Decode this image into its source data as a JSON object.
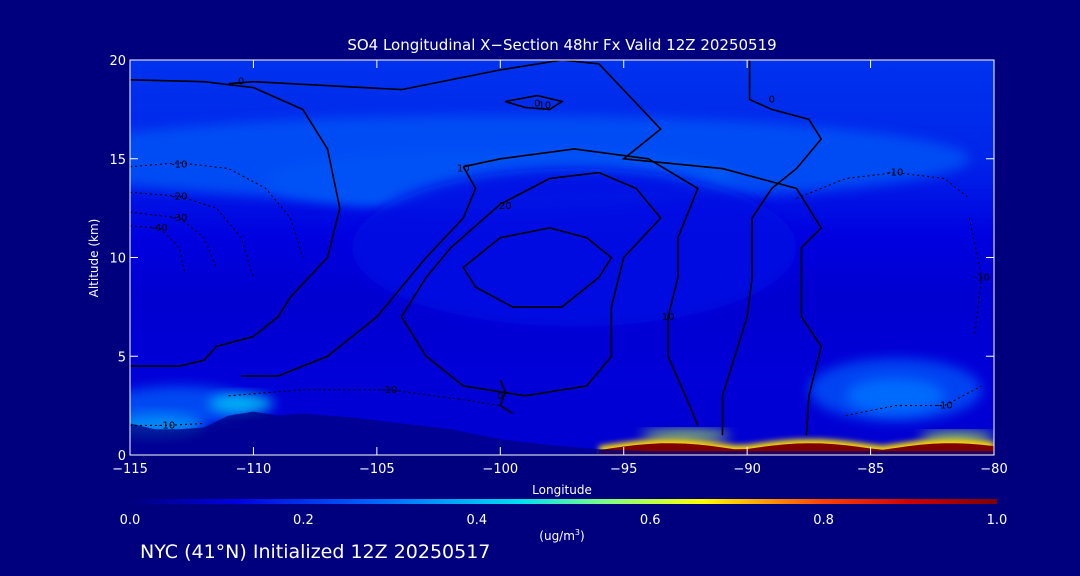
{
  "chart_data": {
    "type": "heatmap",
    "title": "SO4 Longitudinal X−Section 48hr  Fx Valid 12Z 20250519",
    "xlabel": "Longitude",
    "ylabel": "Altitude (km)",
    "xlim": [
      -115,
      -80
    ],
    "ylim": [
      0,
      20
    ],
    "x_ticks": [
      -115,
      -110,
      -105,
      -100,
      -95,
      -90,
      -85,
      -80
    ],
    "x_tick_labels": [
      "−115",
      "−110",
      "−105",
      "−100",
      "−95",
      "−90",
      "−85",
      "−80"
    ],
    "y_ticks": [
      0,
      5,
      10,
      15,
      20
    ],
    "y_tick_labels": [
      "0",
      "5",
      "10",
      "15",
      "20"
    ],
    "colorbar": {
      "range": [
        0.0,
        1.0
      ],
      "ticks": [
        0.0,
        0.2,
        0.4,
        0.6,
        0.8,
        1.0
      ],
      "tick_labels": [
        "0.0",
        "0.2",
        "0.4",
        "0.6",
        "0.8",
        "1.0"
      ],
      "unit_label": "(ug/m",
      "unit_sup": "3",
      "unit_close": ")"
    },
    "surface_profile": [
      [
        -115,
        1.6
      ],
      [
        -114,
        1.3
      ],
      [
        -113,
        1.3
      ],
      [
        -112,
        1.4
      ],
      [
        -111,
        2.0
      ],
      [
        -110,
        2.2
      ],
      [
        -109,
        2.0
      ],
      [
        -108,
        2.1
      ],
      [
        -106,
        1.9
      ],
      [
        -104,
        1.6
      ],
      [
        -102,
        1.3
      ],
      [
        -100,
        0.8
      ],
      [
        -98,
        0.5
      ],
      [
        -96,
        0.3
      ],
      [
        -94,
        0.2
      ],
      [
        -90,
        0.2
      ],
      [
        -85,
        0.2
      ],
      [
        -80,
        0.2
      ]
    ],
    "concentration_features": [
      {
        "lon": -96.0,
        "alt": 14.1,
        "rx": 5.5,
        "ry": 0.9,
        "value": 0.42
      },
      {
        "lon": -100.5,
        "alt": 13.9,
        "rx": 9,
        "ry": 1.5,
        "value": 0.28
      },
      {
        "lon": -100,
        "alt": 15.0,
        "rx": 19,
        "ry": 2.2,
        "value": 0.25
      },
      {
        "lon": -97,
        "alt": 10.5,
        "rx": 9,
        "ry": 4,
        "value": 0.14
      },
      {
        "lon": -84,
        "alt": 3.3,
        "rx": 3.5,
        "ry": 1.6,
        "value": 0.24
      },
      {
        "lon": -84,
        "alt": 3.0,
        "rx": 2,
        "ry": 0.9,
        "value": 0.3
      },
      {
        "lon": -113,
        "alt": 2.5,
        "rx": 3,
        "ry": 1.0,
        "value": 0.25
      },
      {
        "lon": -110.5,
        "alt": 2.6,
        "rx": 1.3,
        "ry": 0.5,
        "value": 0.4
      },
      {
        "lon": -114,
        "alt": 1.5,
        "rx": 2,
        "ry": 0.6,
        "value": 0.35
      },
      {
        "lon": -92.5,
        "alt": 1.0,
        "rx": 1.8,
        "ry": 0.25,
        "value": 0.6
      },
      {
        "lon": -81.5,
        "alt": 0.9,
        "rx": 1.5,
        "ry": 0.25,
        "value": 0.6
      }
    ],
    "near_surface_peak": {
      "lon_range": [
        -96,
        -80
      ],
      "alt_range": [
        0,
        1.2
      ],
      "value": 1.0
    },
    "contours_solid": [
      {
        "label": "0",
        "label_lon": -110.5,
        "label_alt": 18.9,
        "points": [
          [
            -115,
            19.0
          ],
          [
            -112,
            18.9
          ],
          [
            -110,
            18.6
          ],
          [
            -108,
            17.5
          ],
          [
            -107,
            15.5
          ],
          [
            -106.5,
            12.5
          ],
          [
            -107,
            10
          ],
          [
            -108.5,
            8
          ],
          [
            -109,
            7
          ],
          [
            -110,
            6
          ],
          [
            -111.5,
            5.5
          ],
          [
            -112,
            4.8
          ],
          [
            -113,
            4.5
          ],
          [
            -115,
            4.5
          ]
        ]
      },
      {
        "label": "0",
        "label_lon": -98.5,
        "label_alt": 17.8,
        "points": [
          [
            -111,
            18.8
          ],
          [
            -110,
            18.9
          ],
          [
            -104,
            18.5
          ],
          [
            -100,
            19.5
          ],
          [
            -97.5,
            20
          ],
          [
            -96,
            19.8
          ],
          [
            -93.5,
            16.5
          ],
          [
            -95,
            15
          ],
          [
            -91,
            14.5
          ],
          [
            -88,
            13.5
          ],
          [
            -87,
            11.5
          ],
          [
            -87.8,
            10.5
          ],
          [
            -87.8,
            7
          ],
          [
            -87,
            5.5
          ],
          [
            -87.5,
            3
          ],
          [
            -87.6,
            1.0
          ]
        ]
      },
      {
        "label": "10",
        "label_lon": -98.2,
        "label_alt": 17.7,
        "points": [
          [
            -99.8,
            17.9
          ],
          [
            -99,
            17.6
          ],
          [
            -98,
            17.5
          ],
          [
            -97.5,
            17.9
          ],
          [
            -98.5,
            18.2
          ],
          [
            -99.8,
            17.9
          ]
        ]
      },
      {
        "label": "0",
        "label_lon": -89.0,
        "label_alt": 18.0,
        "points": [
          [
            -89.9,
            20
          ],
          [
            -89.9,
            18
          ],
          [
            -89,
            17.5
          ],
          [
            -87.5,
            17
          ],
          [
            -87,
            16
          ],
          [
            -88,
            14.5
          ],
          [
            -89,
            13.5
          ],
          [
            -89.8,
            12
          ],
          [
            -89.8,
            9
          ],
          [
            -90,
            7
          ],
          [
            -90.5,
            5
          ],
          [
            -91,
            3
          ],
          [
            -91,
            1.0
          ]
        ]
      },
      {
        "label": "10",
        "label_lon": -101.5,
        "label_alt": 14.5,
        "points": [
          [
            -101.5,
            14.6
          ],
          [
            -101,
            13.5
          ],
          [
            -101.5,
            12
          ],
          [
            -103,
            10
          ],
          [
            -104,
            8.5
          ],
          [
            -105,
            7
          ],
          [
            -106,
            6
          ],
          [
            -107,
            5
          ],
          [
            -108,
            4.5
          ],
          [
            -109,
            4
          ],
          [
            -110.5,
            4
          ]
        ]
      },
      {
        "label": "10",
        "label_lon": -93.2,
        "label_alt": 7.0,
        "points": [
          [
            -101.5,
            14.6
          ],
          [
            -100,
            15
          ],
          [
            -97,
            15.5
          ],
          [
            -94,
            15
          ],
          [
            -92,
            13.5
          ],
          [
            -92.8,
            11
          ],
          [
            -92.8,
            9
          ],
          [
            -93.2,
            7
          ],
          [
            -93.2,
            5
          ],
          [
            -92.5,
            3
          ],
          [
            -92,
            1.5
          ]
        ]
      },
      {
        "label": "20",
        "label_lon": -99.8,
        "label_alt": 12.6,
        "points": [
          [
            -100,
            12.7
          ],
          [
            -98,
            14
          ],
          [
            -96,
            14.3
          ],
          [
            -94.5,
            13.5
          ],
          [
            -93.5,
            12
          ],
          [
            -95,
            10
          ],
          [
            -95.5,
            7.5
          ],
          [
            -95.5,
            5
          ],
          [
            -96.5,
            3.5
          ],
          [
            -99,
            3
          ],
          [
            -101.5,
            3.5
          ],
          [
            -103,
            5
          ],
          [
            -104,
            7
          ],
          [
            -103,
            9
          ],
          [
            -102,
            10.5
          ],
          [
            -100,
            12.7
          ]
        ]
      },
      {
        "label": "",
        "label_lon": -97,
        "label_alt": 10,
        "points": [
          [
            -100,
            11
          ],
          [
            -98,
            11.5
          ],
          [
            -96.5,
            11
          ],
          [
            -95.5,
            10
          ],
          [
            -96,
            9
          ],
          [
            -97.5,
            7.5
          ],
          [
            -99.5,
            7.5
          ],
          [
            -101,
            8.5
          ],
          [
            -101.5,
            9.5
          ],
          [
            -100,
            11
          ]
        ]
      },
      {
        "label": "0",
        "label_lon": -100.0,
        "label_alt": 3.0,
        "points": [
          [
            -100,
            3.8
          ],
          [
            -99.8,
            3.2
          ],
          [
            -100,
            2.5
          ],
          [
            -99.5,
            2.1
          ]
        ]
      }
    ],
    "contours_dashed": [
      {
        "label": "-10",
        "label_lon": -113.0,
        "label_alt": 14.7,
        "points": [
          [
            -115,
            14.6
          ],
          [
            -113,
            14.8
          ],
          [
            -111,
            14.5
          ],
          [
            -109.5,
            13.5
          ],
          [
            -108.5,
            12
          ],
          [
            -108,
            10
          ]
        ]
      },
      {
        "label": "-20",
        "label_lon": -113.0,
        "label_alt": 13.1,
        "points": [
          [
            -115,
            13.3
          ],
          [
            -113,
            13.1
          ],
          [
            -111.5,
            12.5
          ],
          [
            -110.5,
            11
          ],
          [
            -110,
            9
          ]
        ]
      },
      {
        "label": "-30",
        "label_lon": -113.0,
        "label_alt": 12.0,
        "points": [
          [
            -115,
            12.3
          ],
          [
            -113,
            12.0
          ],
          [
            -112,
            11
          ],
          [
            -111.5,
            9.5
          ]
        ]
      },
      {
        "label": "-40",
        "label_lon": -113.8,
        "label_alt": 11.5,
        "points": [
          [
            -115,
            11.6
          ],
          [
            -113.8,
            11.5
          ],
          [
            -113,
            10.5
          ],
          [
            -112.8,
            9.3
          ]
        ]
      },
      {
        "label": "-10",
        "label_lon": -84.0,
        "label_alt": 14.3,
        "points": [
          [
            -88,
            13
          ],
          [
            -86,
            14
          ],
          [
            -84,
            14.3
          ],
          [
            -82,
            14
          ],
          [
            -81,
            13
          ]
        ]
      },
      {
        "label": "-10",
        "label_lon": -104.5,
        "label_alt": 3.3,
        "points": [
          [
            -111,
            3.0
          ],
          [
            -108,
            3.3
          ],
          [
            -104.5,
            3.3
          ],
          [
            -101.5,
            2.8
          ],
          [
            -100,
            2.5
          ]
        ]
      },
      {
        "label": "-10",
        "label_lon": -113.5,
        "label_alt": 1.5,
        "points": [
          [
            -115,
            1.5
          ],
          [
            -113.5,
            1.5
          ],
          [
            -112,
            1.6
          ]
        ]
      },
      {
        "label": "-10",
        "label_lon": -82.0,
        "label_alt": 2.5,
        "points": [
          [
            -86,
            2
          ],
          [
            -84,
            2.5
          ],
          [
            -82,
            2.5
          ],
          [
            -80.5,
            3.5
          ]
        ]
      },
      {
        "label": "-10",
        "label_lon": -80.5,
        "label_alt": 9.0,
        "points": [
          [
            -81,
            12
          ],
          [
            -80.5,
            9
          ],
          [
            -80.8,
            6
          ]
        ]
      }
    ]
  },
  "footer": {
    "caption": "NYC (41°N) Initialized 12Z 20250517"
  }
}
